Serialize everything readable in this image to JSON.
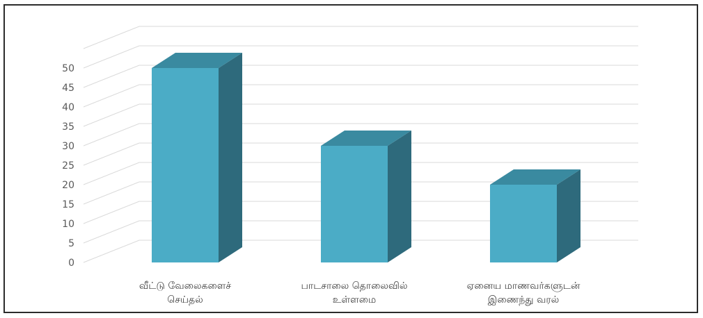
{
  "chart_data": {
    "type": "bar",
    "style": "3d-column",
    "categories": [
      [
        "வீட்டு வேலைகளைச்",
        "செய்தல்"
      ],
      [
        "பாடசாலை தொலைவில்",
        "உள்ளமை"
      ],
      [
        "ஏனைய மாணவர்களுடன்",
        "இணைந்து வரல்"
      ]
    ],
    "values": [
      50,
      30,
      20
    ],
    "ylim": [
      0,
      50
    ],
    "yticks": [
      0,
      5,
      10,
      15,
      20,
      25,
      30,
      35,
      40,
      45,
      50
    ],
    "grid": true,
    "legend": "none",
    "colors": {
      "front": "#4bacc6",
      "side": "#2e6a7c",
      "top": "#3a8aa0",
      "grid": "#d9d9d9",
      "tick": "#595959"
    }
  }
}
